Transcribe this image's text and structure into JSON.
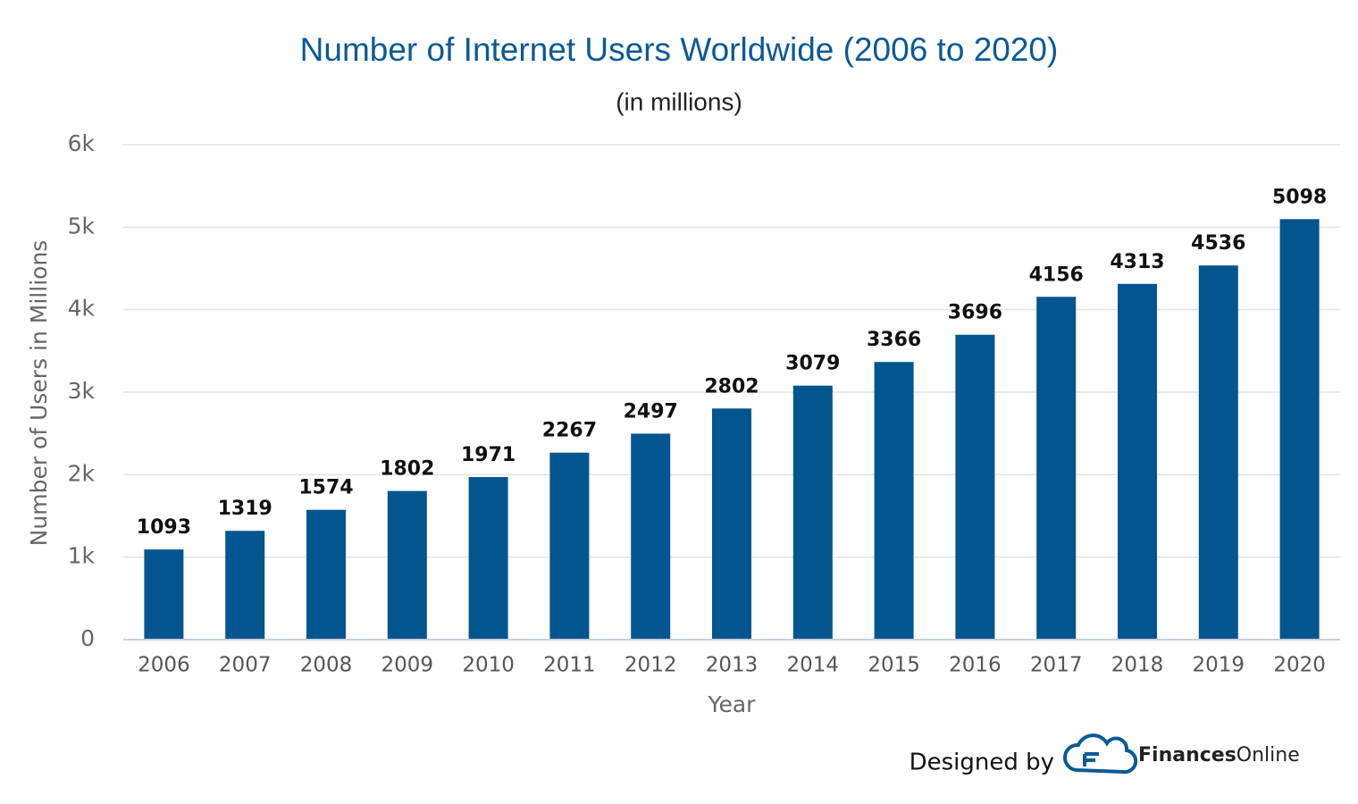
{
  "chart_data": {
    "type": "bar",
    "title": "Number of Internet Users Worldwide (2006 to 2020)",
    "subtitle": "(in millions)",
    "x_label": "Year",
    "y_label": "Number of Users in Millions",
    "categories": [
      "2006",
      "2007",
      "2008",
      "2009",
      "2010",
      "2011",
      "2012",
      "2013",
      "2014",
      "2015",
      "2016",
      "2017",
      "2018",
      "2019",
      "2020"
    ],
    "values": [
      1093,
      1319,
      1574,
      1802,
      1971,
      2267,
      2497,
      2802,
      3079,
      3366,
      3696,
      4156,
      4313,
      4536,
      5098
    ],
    "color": "#02558f",
    "ylim": [
      0,
      6000
    ],
    "yticks": [
      0,
      {
        "value": 1000,
        "label": "1k"
      },
      {
        "value": 2000,
        "label": "2k"
      },
      {
        "value": 3000,
        "label": "3k"
      },
      {
        "value": 4000,
        "label": "4k"
      },
      {
        "value": 5000,
        "label": "5k"
      },
      {
        "value": 6000,
        "label": "6k"
      }
    ],
    "grid": true
  },
  "credit": {
    "prefix": "Designed by",
    "brand_bold": "Finances",
    "brand_light": "Online"
  }
}
